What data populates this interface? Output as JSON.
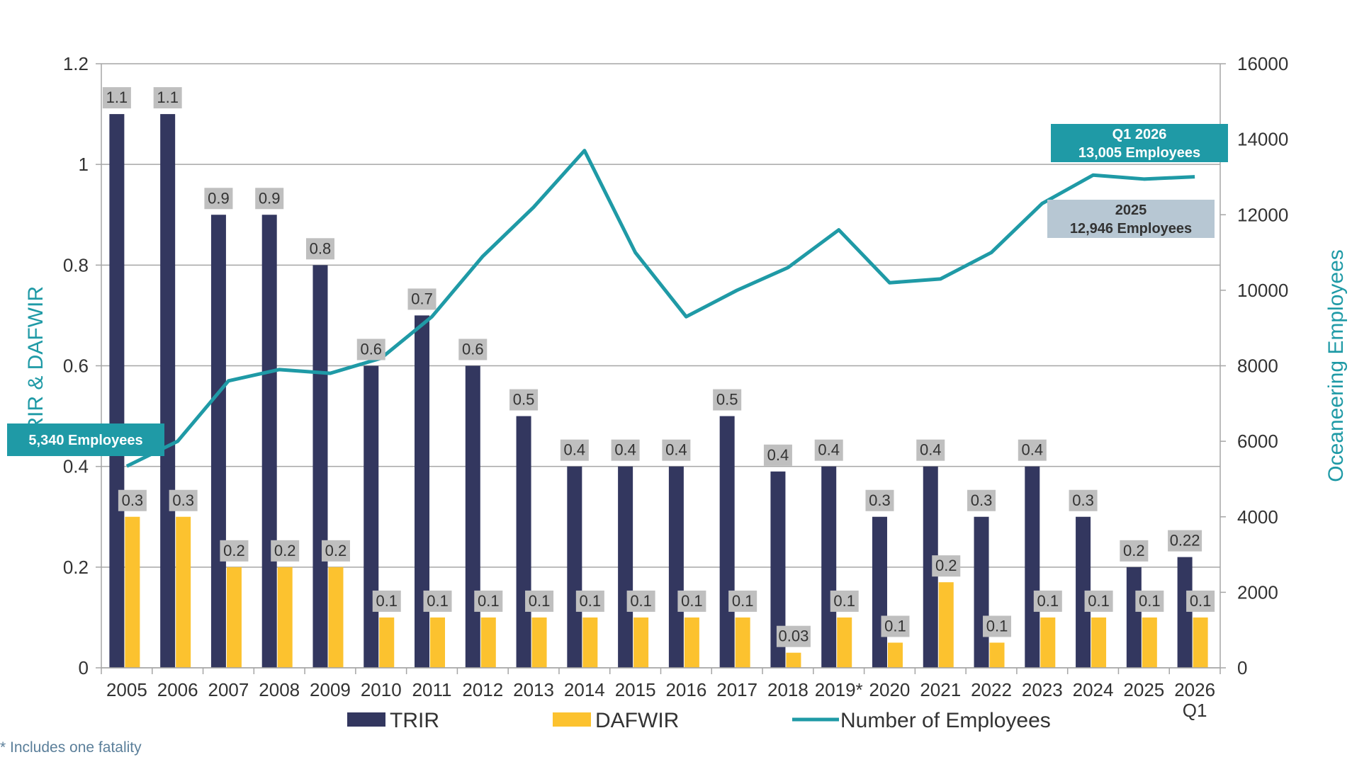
{
  "chart_data": {
    "type": "bar",
    "categories": [
      "2005",
      "2006",
      "2007",
      "2008",
      "2009",
      "2010",
      "2011",
      "2012",
      "2013",
      "2014",
      "2015",
      "2016",
      "2017",
      "2018",
      "2019*",
      "2020",
      "2021",
      "2022",
      "2023",
      "2024",
      "2025",
      "2026"
    ],
    "category_sublabels": {
      "2026": "Q1"
    },
    "series": [
      {
        "name": "TRIR",
        "kind": "bar",
        "axis": "left",
        "color": "#33375f",
        "values": [
          1.1,
          1.1,
          0.9,
          0.9,
          0.8,
          0.6,
          0.7,
          0.6,
          0.5,
          0.4,
          0.4,
          0.4,
          0.5,
          0.39,
          0.4,
          0.3,
          0.4,
          0.3,
          0.4,
          0.3,
          0.2,
          0.22
        ],
        "labels": [
          "1.1",
          "1.1",
          "0.9",
          "0.9",
          "0.8",
          "0.6",
          "0.7",
          "0.6",
          "0.5",
          "0.4",
          "0.4",
          "0.4",
          "0.5",
          "0.4",
          "0.4",
          "0.3",
          "0.4",
          "0.3",
          "0.4",
          "0.3",
          "0.2",
          "0.22"
        ]
      },
      {
        "name": "DAFWIR",
        "kind": "bar",
        "axis": "left",
        "color": "#fcc22f",
        "values": [
          0.3,
          0.3,
          0.2,
          0.2,
          0.2,
          0.1,
          0.1,
          0.1,
          0.1,
          0.1,
          0.1,
          0.1,
          0.1,
          0.03,
          0.1,
          0.05,
          0.17,
          0.05,
          0.1,
          0.1,
          0.1,
          0.1
        ],
        "labels": [
          "0.3",
          "0.3",
          "0.2",
          "0.2",
          "0.2",
          "0.1",
          "0.1",
          "0.1",
          "0.1",
          "0.1",
          "0.1",
          "0.1",
          "0.1",
          "0.03",
          "0.1",
          "0.1",
          "0.2",
          "0.1",
          "0.1",
          "0.1",
          "0.1",
          "0.1"
        ]
      },
      {
        "name": "Number of Employees",
        "kind": "line",
        "axis": "right",
        "color": "#1f9aa6",
        "values": [
          5340,
          6000,
          7600,
          7900,
          7800,
          8200,
          9300,
          10900,
          12200,
          13700,
          11000,
          9300,
          10000,
          10600,
          11600,
          10200,
          10300,
          11000,
          12300,
          13050,
          12946,
          13005
        ]
      }
    ],
    "ylabel": "TRIR & DAFWIR",
    "ylabel_right": "Oceaneering Employees",
    "ylim": [
      0,
      1.2
    ],
    "ylim_right": [
      0,
      16000
    ],
    "yticks": [
      "0",
      "0.2",
      "0.4",
      "0.6",
      "0.8",
      "1",
      "1.2"
    ],
    "yticks_right": [
      "0",
      "2000",
      "4000",
      "6000",
      "8000",
      "10000",
      "12000",
      "14000",
      "16000"
    ],
    "grid": true,
    "legend_position": "bottom",
    "callouts": [
      {
        "lines": [
          "5,340 Employees"
        ],
        "style": "teal"
      },
      {
        "lines": [
          "Q1 2026",
          "13,005 Employees"
        ],
        "style": "teal"
      },
      {
        "lines": [
          "2025",
          "12,946 Employees"
        ],
        "style": "light"
      }
    ]
  },
  "footnote": "* Includes one fatality"
}
